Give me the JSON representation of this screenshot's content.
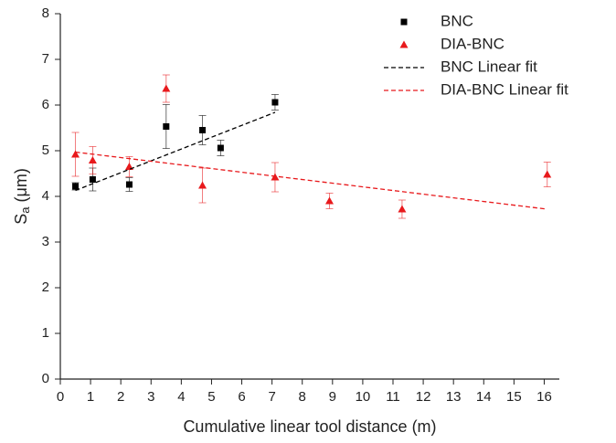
{
  "chart_data": {
    "type": "scatter",
    "x_label": "Cumulative linear tool distance (m)",
    "y_label_parts": [
      "S",
      "a",
      " (μm)"
    ],
    "xlim": [
      0,
      16.5
    ],
    "ylim": [
      0,
      8
    ],
    "xticks": [
      0,
      1,
      2,
      3,
      4,
      5,
      6,
      7,
      8,
      9,
      10,
      11,
      12,
      13,
      14,
      15,
      16
    ],
    "yticks": [
      0,
      1,
      2,
      3,
      4,
      5,
      6,
      7,
      8
    ],
    "legend": "top-right",
    "series": [
      {
        "name": "BNC",
        "color": "#000000",
        "marker": "square",
        "x": [
          0.5,
          1.07,
          2.28,
          3.5,
          4.7,
          5.3,
          7.1
        ],
        "values": [
          4.22,
          4.37,
          4.26,
          5.53,
          5.45,
          5.06,
          6.06
        ],
        "errors": [
          0.08,
          0.25,
          0.15,
          0.48,
          0.32,
          0.17,
          0.17
        ]
      },
      {
        "name": "DIA-BNC",
        "color": "#e8191c",
        "marker": "triangle",
        "x": [
          0.5,
          1.07,
          2.28,
          3.5,
          4.7,
          7.1,
          8.9,
          11.3,
          16.1
        ],
        "values": [
          4.92,
          4.79,
          4.65,
          6.36,
          4.24,
          4.42,
          3.9,
          3.72,
          4.48
        ],
        "errors": [
          0.48,
          0.3,
          0.22,
          0.3,
          0.38,
          0.32,
          0.17,
          0.2,
          0.27
        ]
      },
      {
        "name": "BNC Linear fit",
        "color": "#000000",
        "line_style": "dashed",
        "x": [
          0.5,
          7.1
        ],
        "values": [
          4.13,
          5.84
        ]
      },
      {
        "name": "DIA-BNC Linear fit",
        "color": "#e8191c",
        "line_style": "dashed",
        "x": [
          0.5,
          16.1
        ],
        "values": [
          4.97,
          3.72
        ]
      }
    ]
  }
}
